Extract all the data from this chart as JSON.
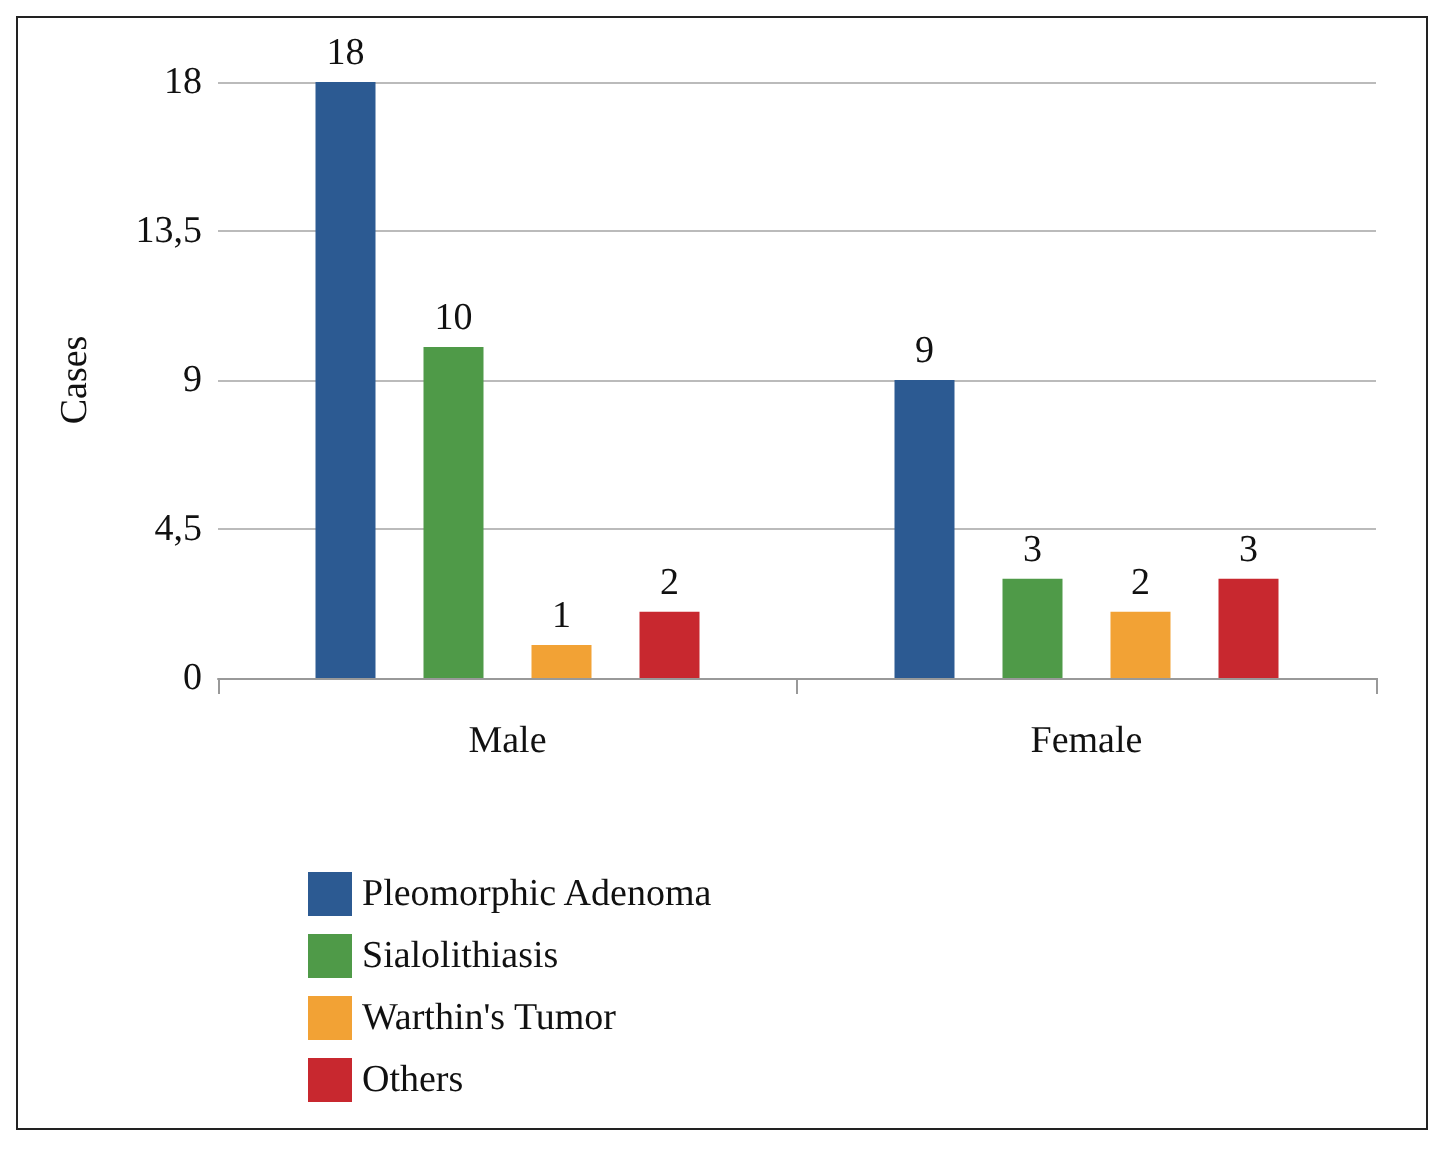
{
  "chart_data": {
    "type": "bar",
    "ylabel": "Cases",
    "categories": [
      "Male",
      "Female"
    ],
    "series": [
      {
        "name": "Pleomorphic Adenoma",
        "color": "#2c5a92",
        "values": [
          18,
          9
        ]
      },
      {
        "name": "Sialolithiasis",
        "color": "#4f9a48",
        "values": [
          10,
          3
        ]
      },
      {
        "name": "Warthin's Tumor",
        "color": "#f2a235",
        "values": [
          1,
          2
        ]
      },
      {
        "name": "Others",
        "color": "#c8282f",
        "values": [
          2,
          3
        ]
      }
    ],
    "ylim": [
      0,
      18
    ],
    "yticks": [
      0,
      {
        "value": 4.5,
        "label": "4,5"
      },
      9,
      {
        "value": 13.5,
        "label": "13,5"
      },
      18
    ],
    "grid": "y",
    "legend": "bottom left",
    "data_labels": true
  }
}
